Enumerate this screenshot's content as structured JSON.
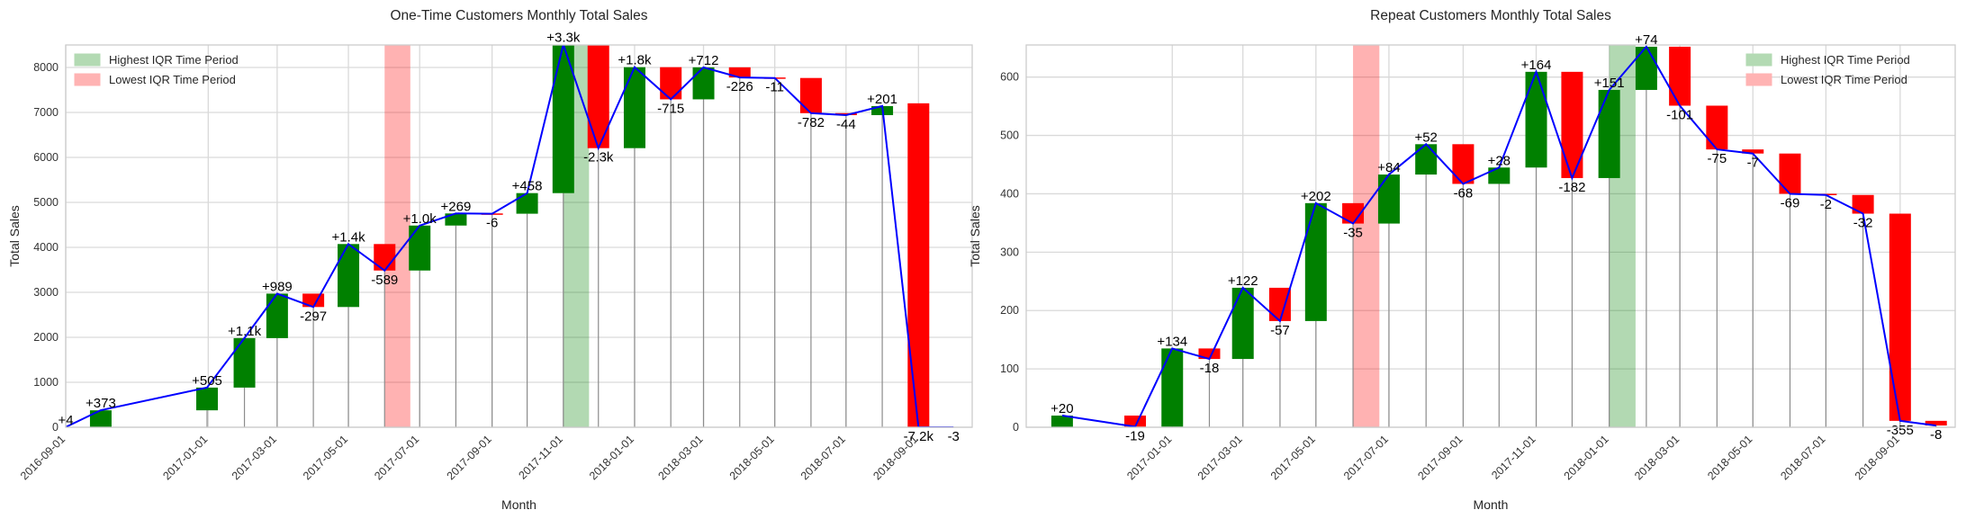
{
  "chart_data": [
    {
      "type": "waterfall",
      "title": "One-Time Customers Monthly Total Sales",
      "xlabel": "Month",
      "ylabel": "Total Sales",
      "ylim": [
        0,
        8500
      ],
      "yticks": [
        0,
        1000,
        2000,
        3000,
        4000,
        5000,
        6000,
        7000,
        8000
      ],
      "grid": true,
      "legend_position": "top-left",
      "legend": [
        {
          "label": "Highest IQR Time Period",
          "color": "#b3dab3"
        },
        {
          "label": "Lowest IQR Time Period",
          "color": "#ffb3b3"
        }
      ],
      "colors": {
        "increase": "#008000",
        "decrease": "#ff0000",
        "line": "#0000ff",
        "stem": "#8c8c8c"
      },
      "x_start": "2016-09-01",
      "x_end": "2018-10-17",
      "xticks": [
        "2016-09-01",
        "2017-01-01",
        "2017-03-01",
        "2017-05-01",
        "2017-07-01",
        "2017-09-01",
        "2017-11-01",
        "2018-01-01",
        "2018-03-01",
        "2018-05-01",
        "2018-07-01",
        "2018-09-01"
      ],
      "highest_period": [
        "2017-11-01",
        "2017-11-23"
      ],
      "lowest_period": [
        "2017-06-01",
        "2017-06-23"
      ],
      "points": [
        {
          "date": "2016-09-01",
          "value": 4,
          "change": 4,
          "label": "+4"
        },
        {
          "date": "2016-10-01",
          "value": 377,
          "change": 373,
          "label": "+373"
        },
        {
          "date": "2016-12-31",
          "value": 882,
          "change": 505,
          "label": "+505"
        },
        {
          "date": "2017-02-01",
          "value": 1982,
          "change": 1100,
          "label": "+1.1k"
        },
        {
          "date": "2017-03-01",
          "value": 2971,
          "change": 989,
          "label": "+989"
        },
        {
          "date": "2017-04-01",
          "value": 2674,
          "change": -297,
          "label": "-297"
        },
        {
          "date": "2017-05-01",
          "value": 4074,
          "change": 1400,
          "label": "+1.4k"
        },
        {
          "date": "2017-06-01",
          "value": 3485,
          "change": -589,
          "label": "-589"
        },
        {
          "date": "2017-07-01",
          "value": 4485,
          "change": 1000,
          "label": "+1.0k"
        },
        {
          "date": "2017-08-01",
          "value": 4754,
          "change": 269,
          "label": "+269"
        },
        {
          "date": "2017-09-01",
          "value": 4748,
          "change": -6,
          "label": "-6"
        },
        {
          "date": "2017-10-01",
          "value": 5206,
          "change": 458,
          "label": "+458"
        },
        {
          "date": "2017-11-01",
          "value": 8506,
          "change": 3300,
          "label": "+3.3k"
        },
        {
          "date": "2017-12-01",
          "value": 6206,
          "change": -2300,
          "label": "-2.3k"
        },
        {
          "date": "2018-01-01",
          "value": 8006,
          "change": 1800,
          "label": "+1.8k"
        },
        {
          "date": "2018-02-01",
          "value": 7291,
          "change": -715,
          "label": "-715"
        },
        {
          "date": "2018-03-01",
          "value": 8003,
          "change": 712,
          "label": "+712"
        },
        {
          "date": "2018-04-01",
          "value": 7777,
          "change": -226,
          "label": "-226"
        },
        {
          "date": "2018-05-01",
          "value": 7766,
          "change": -11,
          "label": "-11"
        },
        {
          "date": "2018-06-01",
          "value": 6984,
          "change": -782,
          "label": "-782"
        },
        {
          "date": "2018-07-01",
          "value": 6940,
          "change": -44,
          "label": "-44"
        },
        {
          "date": "2018-08-01",
          "value": 7141,
          "change": 201,
          "label": "+201"
        },
        {
          "date": "2018-09-01",
          "value": 3,
          "change": -7200,
          "label": "-7.2k"
        },
        {
          "date": "2018-10-01",
          "value": 0,
          "change": -3,
          "label": "-3"
        }
      ]
    },
    {
      "type": "waterfall",
      "title": "Repeat Customers Monthly Total Sales",
      "xlabel": "Month",
      "ylabel": "Total Sales",
      "ylim": [
        0,
        655
      ],
      "yticks": [
        0,
        100,
        200,
        300,
        400,
        500,
        600
      ],
      "grid": true,
      "legend_position": "top-right",
      "legend": [
        {
          "label": "Highest IQR Time Period",
          "color": "#b3dab3"
        },
        {
          "label": "Lowest IQR Time Period",
          "color": "#ffb3b3"
        }
      ],
      "colors": {
        "increase": "#008000",
        "decrease": "#ff0000",
        "line": "#0000ff",
        "stem": "#8c8c8c"
      },
      "x_start": "2016-09-01",
      "x_end": "2018-10-17",
      "xticks": [
        "2017-01-01",
        "2017-03-01",
        "2017-05-01",
        "2017-07-01",
        "2017-09-01",
        "2017-11-01",
        "2018-01-01",
        "2018-03-01",
        "2018-05-01",
        "2018-07-01",
        "2018-09-01"
      ],
      "highest_period": [
        "2018-01-01",
        "2018-01-23"
      ],
      "lowest_period": [
        "2017-06-01",
        "2017-06-23"
      ],
      "points": [
        {
          "date": "2016-10-01",
          "value": 20,
          "change": 20,
          "label": "+20"
        },
        {
          "date": "2016-12-01",
          "value": 1,
          "change": -19,
          "label": "-19"
        },
        {
          "date": "2017-01-01",
          "value": 135,
          "change": 134,
          "label": "+134"
        },
        {
          "date": "2017-02-01",
          "value": 117,
          "change": -18,
          "label": "-18"
        },
        {
          "date": "2017-03-01",
          "value": 239,
          "change": 122,
          "label": "+122"
        },
        {
          "date": "2017-04-01",
          "value": 182,
          "change": -57,
          "label": "-57"
        },
        {
          "date": "2017-05-01",
          "value": 384,
          "change": 202,
          "label": "+202"
        },
        {
          "date": "2017-06-01",
          "value": 349,
          "change": -35,
          "label": "-35"
        },
        {
          "date": "2017-07-01",
          "value": 433,
          "change": 84,
          "label": "+84"
        },
        {
          "date": "2017-08-01",
          "value": 485,
          "change": 52,
          "label": "+52"
        },
        {
          "date": "2017-09-01",
          "value": 417,
          "change": -68,
          "label": "-68"
        },
        {
          "date": "2017-10-01",
          "value": 445,
          "change": 28,
          "label": "+28"
        },
        {
          "date": "2017-11-01",
          "value": 609,
          "change": 164,
          "label": "+164"
        },
        {
          "date": "2017-12-01",
          "value": 427,
          "change": -182,
          "label": "-182"
        },
        {
          "date": "2018-01-01",
          "value": 578,
          "change": 151,
          "label": "+151"
        },
        {
          "date": "2018-02-01",
          "value": 652,
          "change": 74,
          "label": "+74"
        },
        {
          "date": "2018-03-01",
          "value": 551,
          "change": -101,
          "label": "-101"
        },
        {
          "date": "2018-04-01",
          "value": 476,
          "change": -75,
          "label": "-75"
        },
        {
          "date": "2018-05-01",
          "value": 469,
          "change": -7,
          "label": "-7"
        },
        {
          "date": "2018-06-01",
          "value": 400,
          "change": -69,
          "label": "-69"
        },
        {
          "date": "2018-07-01",
          "value": 398,
          "change": -2,
          "label": "-2"
        },
        {
          "date": "2018-08-01",
          "value": 366,
          "change": -32,
          "label": "-32"
        },
        {
          "date": "2018-09-01",
          "value": 11,
          "change": -355,
          "label": "-355"
        },
        {
          "date": "2018-10-01",
          "value": 3,
          "change": -8,
          "label": "-8"
        }
      ]
    }
  ]
}
